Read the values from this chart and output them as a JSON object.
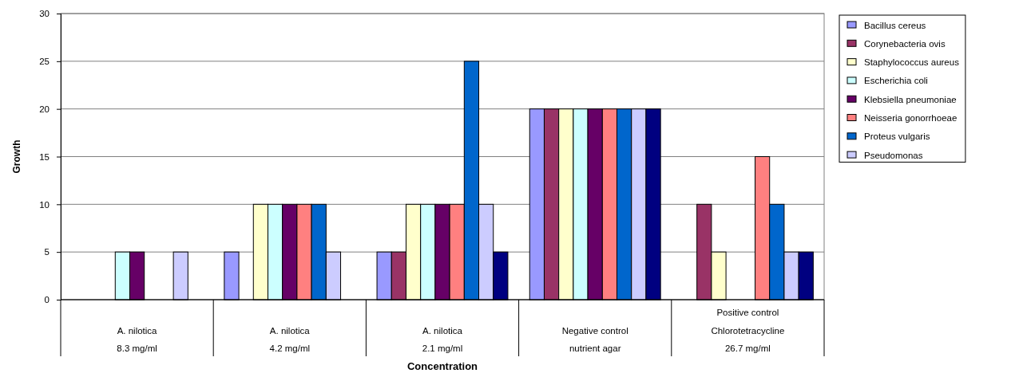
{
  "chart_data": {
    "type": "bar",
    "xlabel": "Concentration",
    "ylabel": "Growth",
    "categories": [
      "A. nilotica\n8.3 mg/ml",
      "A. nilotica\n4.2 mg/ml",
      "A. nilotica\n2.1 mg/ml",
      "Negative control\nnutrient agar",
      "Positive control\nChlorotetracycline\n26.7 mg/ml"
    ],
    "series": [
      {
        "name": "Bacillus cereus",
        "color": "#9999ff",
        "values": [
          0,
          5,
          5,
          20,
          0
        ]
      },
      {
        "name": "Corynebacteria ovis",
        "color": "#993366",
        "values": [
          0,
          0,
          5,
          20,
          10
        ]
      },
      {
        "name": "Staphylococcus aureus",
        "color": "#ffffcc",
        "values": [
          0,
          10,
          10,
          20,
          5
        ]
      },
      {
        "name": "Escherichia coli",
        "color": "#ccffff",
        "values": [
          5,
          10,
          10,
          20,
          0
        ]
      },
      {
        "name": "Klebsiella pneumoniae",
        "color": "#660066",
        "values": [
          5,
          10,
          10,
          20,
          0
        ]
      },
      {
        "name": "Neisseria gonorrhoeae",
        "color": "#ff8080",
        "values": [
          0,
          10,
          10,
          20,
          15
        ]
      },
      {
        "name": "Proteus vulgaris",
        "color": "#0066cc",
        "values": [
          0,
          10,
          25,
          20,
          10
        ]
      },
      {
        "name": "Pseudomonas",
        "color": "#ccccff",
        "values": [
          5,
          5,
          10,
          20,
          5
        ]
      },
      {
        "color": "#000080",
        "values": [
          0,
          0,
          5,
          20,
          5
        ]
      }
    ],
    "ylim": [
      0,
      30
    ],
    "yticks": [
      0,
      5,
      10,
      15,
      20,
      25,
      30
    ],
    "grid": "y",
    "legend": "right"
  }
}
